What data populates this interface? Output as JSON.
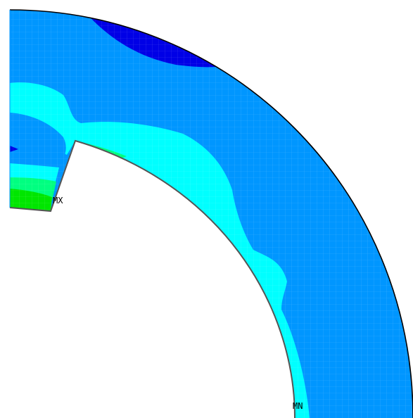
{
  "markers": {
    "max_label": "MX",
    "min_label": "MN"
  },
  "palette": {
    "background": "#ffffff",
    "base_blue": "#0096ff",
    "dark_blue": "#0000e6",
    "cyan": "#00ffff",
    "green_light": "#00ff80",
    "green": "#00e600",
    "edge": "#000000"
  }
}
